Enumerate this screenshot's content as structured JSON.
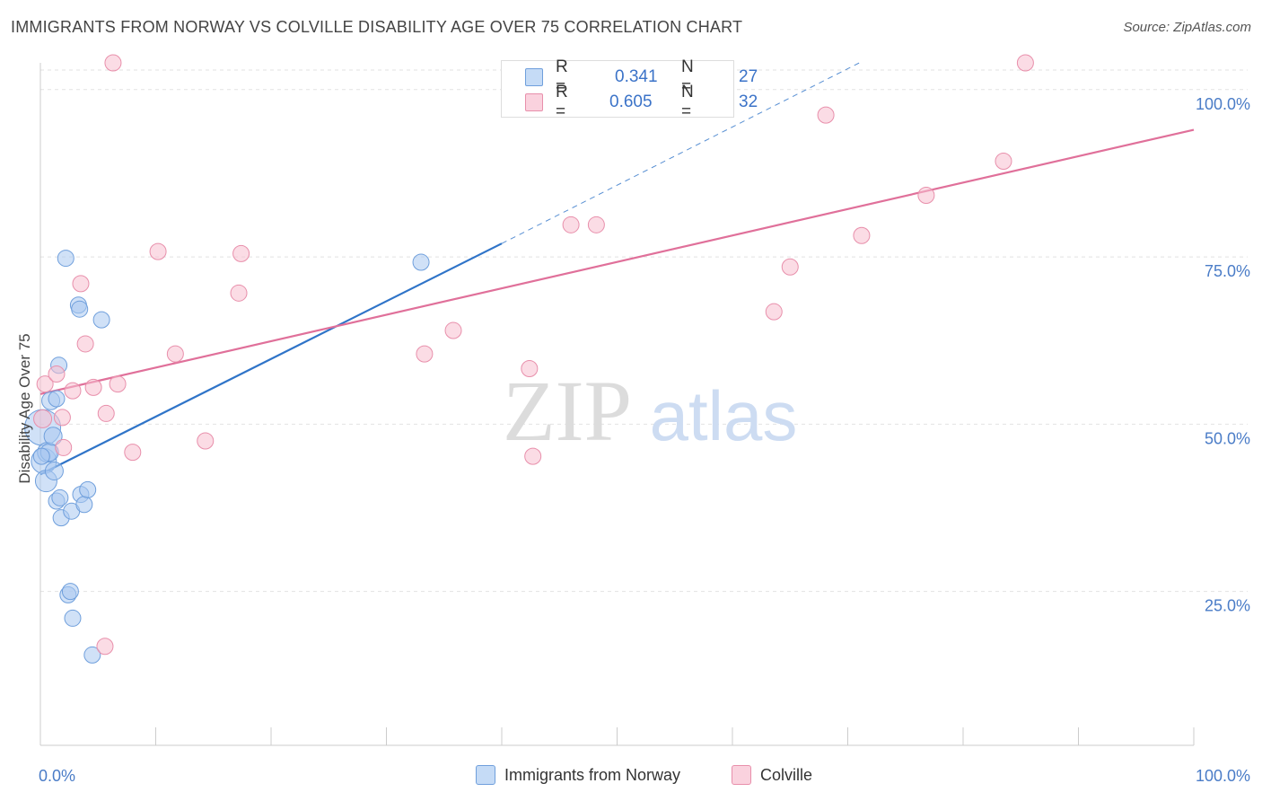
{
  "title": "IMMIGRANTS FROM NORWAY VS COLVILLE DISABILITY AGE OVER 75 CORRELATION CHART",
  "source": "Source: ZipAtlas.com",
  "watermark": {
    "zip": "ZIP",
    "atlas": "atlas"
  },
  "legend_top": [
    {
      "r_label": "R =",
      "r_value": "0.341",
      "n_label": "N =",
      "n_value": "27"
    },
    {
      "r_label": "R =",
      "r_value": "0.605",
      "n_label": "N =",
      "n_value": "32"
    }
  ],
  "legend_bottom": [
    {
      "name": "Immigrants from Norway"
    },
    {
      "name": "Colville"
    }
  ],
  "colors": {
    "blue_fill": "#a9c8f0",
    "blue_stroke": "#6f9fdc",
    "blue_line": "#2f74c8",
    "pink_fill": "#f7bfd0",
    "pink_stroke": "#e88fab",
    "pink_line": "#e0709a",
    "grid": "#e2e2e2",
    "tick_text": "#4a7cc7"
  },
  "chart_data": {
    "type": "scatter",
    "title": "IMMIGRANTS FROM NORWAY VS COLVILLE DISABILITY AGE OVER 75 CORRELATION CHART",
    "xlabel": "",
    "ylabel": "Disability Age Over 75",
    "xlim": [
      0,
      100
    ],
    "ylim": [
      2,
      104
    ],
    "x_tick_labels": [
      "0.0%",
      "100.0%"
    ],
    "y_ticks": [
      25,
      50,
      75,
      100
    ],
    "y_tick_labels": [
      "25.0%",
      "50.0%",
      "75.0%",
      "100.0%"
    ],
    "grid": true,
    "legend_position": "top-center",
    "series": [
      {
        "name": "Immigrants from Norway",
        "r": 0.341,
        "n": 27,
        "points": [
          [
            0.2,
            49.5,
            20
          ],
          [
            0.3,
            44.5,
            14
          ],
          [
            0.5,
            41.5,
            12
          ],
          [
            0.6,
            45.8,
            11
          ],
          [
            0.8,
            45.8,
            10
          ],
          [
            0.9,
            53.5,
            10
          ],
          [
            1.1,
            48.2,
            10
          ],
          [
            1.2,
            43,
            10
          ],
          [
            1.4,
            53.8,
            9
          ],
          [
            1.6,
            58.8,
            9
          ],
          [
            1.4,
            38.5,
            9
          ],
          [
            1.7,
            39.0,
            9
          ],
          [
            1.8,
            36.0,
            9
          ],
          [
            2.2,
            74.8,
            9
          ],
          [
            2.4,
            24.5,
            9
          ],
          [
            2.6,
            25.0,
            9
          ],
          [
            2.8,
            21.0,
            9
          ],
          [
            2.7,
            37.0,
            9
          ],
          [
            3.3,
            67.8,
            9
          ],
          [
            3.4,
            67.2,
            9
          ],
          [
            3.5,
            39.5,
            9
          ],
          [
            3.8,
            38.0,
            9
          ],
          [
            4.1,
            40.2,
            9
          ],
          [
            4.5,
            15.5,
            9
          ],
          [
            5.3,
            65.6,
            9
          ],
          [
            33.0,
            74.2,
            9
          ],
          [
            0.1,
            45.2,
            9
          ]
        ],
        "trend": {
          "x": [
            0,
            40
          ],
          "y": [
            42.5,
            77.0
          ],
          "dashed_extension": {
            "x": [
              40,
              71
            ],
            "y": [
              77.0,
              104
            ]
          }
        }
      },
      {
        "name": "Colville",
        "r": 0.605,
        "n": 32,
        "points": [
          [
            0.2,
            50.8,
            10
          ],
          [
            0.4,
            56.0,
            9
          ],
          [
            1.4,
            57.5,
            9
          ],
          [
            1.9,
            51.0,
            9
          ],
          [
            2.0,
            46.5,
            9
          ],
          [
            2.8,
            55.0,
            9
          ],
          [
            3.5,
            71.0,
            9
          ],
          [
            3.9,
            62.0,
            9
          ],
          [
            4.6,
            55.5,
            9
          ],
          [
            5.6,
            16.8,
            9
          ],
          [
            5.7,
            51.6,
            9
          ],
          [
            6.3,
            104.0,
            9
          ],
          [
            6.7,
            56.0,
            9
          ],
          [
            8.0,
            45.8,
            9
          ],
          [
            10.2,
            75.8,
            9
          ],
          [
            11.7,
            60.5,
            9
          ],
          [
            14.3,
            47.5,
            9
          ],
          [
            17.2,
            69.6,
            9
          ],
          [
            17.4,
            75.5,
            9
          ],
          [
            33.3,
            60.5,
            9
          ],
          [
            35.8,
            64.0,
            9
          ],
          [
            42.4,
            58.3,
            9
          ],
          [
            42.7,
            45.2,
            9
          ],
          [
            46.0,
            79.8,
            9
          ],
          [
            48.2,
            79.8,
            9
          ],
          [
            63.6,
            66.8,
            9
          ],
          [
            65.0,
            73.5,
            9
          ],
          [
            68.1,
            96.2,
            9
          ],
          [
            71.2,
            78.2,
            9
          ],
          [
            76.8,
            84.2,
            9
          ],
          [
            83.5,
            89.3,
            9
          ],
          [
            85.4,
            104.0,
            9
          ]
        ],
        "trend": {
          "x": [
            0,
            100
          ],
          "y": [
            54.5,
            94.0
          ]
        }
      }
    ]
  }
}
